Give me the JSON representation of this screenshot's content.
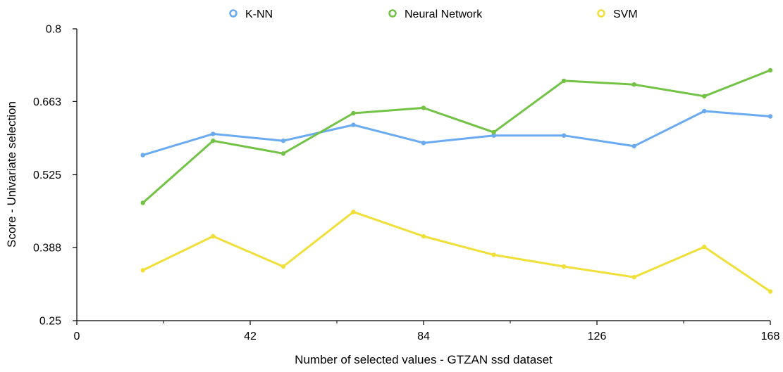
{
  "chart_data": {
    "type": "line",
    "title": "",
    "xlabel": "Number of selected values - GTZAN ssd dataset",
    "ylabel": "Score - Univariate selection",
    "xlim": [
      0,
      168
    ],
    "ylim": [
      0.25,
      0.8
    ],
    "x_ticks": [
      "0",
      "42",
      "84",
      "126",
      "168"
    ],
    "y_ticks": [
      "0.25",
      "0.388",
      "0.525",
      "0.663",
      "0.8"
    ],
    "legend_position": "top",
    "grid": false,
    "x": [
      16,
      33,
      50,
      67,
      84,
      101,
      118,
      135,
      152,
      168
    ],
    "series": [
      {
        "name": "K-NN",
        "color": "#6aaaf0",
        "values": [
          0.562,
          0.602,
          0.589,
          0.619,
          0.585,
          0.599,
          0.599,
          0.579,
          0.645,
          0.635
        ]
      },
      {
        "name": "Neural Network",
        "color": "#72c245",
        "values": [
          0.472,
          0.589,
          0.565,
          0.641,
          0.651,
          0.605,
          0.702,
          0.695,
          0.673,
          0.722
        ]
      },
      {
        "name": "SVM",
        "color": "#f0df38",
        "values": [
          0.345,
          0.409,
          0.352,
          0.455,
          0.409,
          0.374,
          0.352,
          0.332,
          0.389,
          0.305
        ]
      }
    ]
  }
}
